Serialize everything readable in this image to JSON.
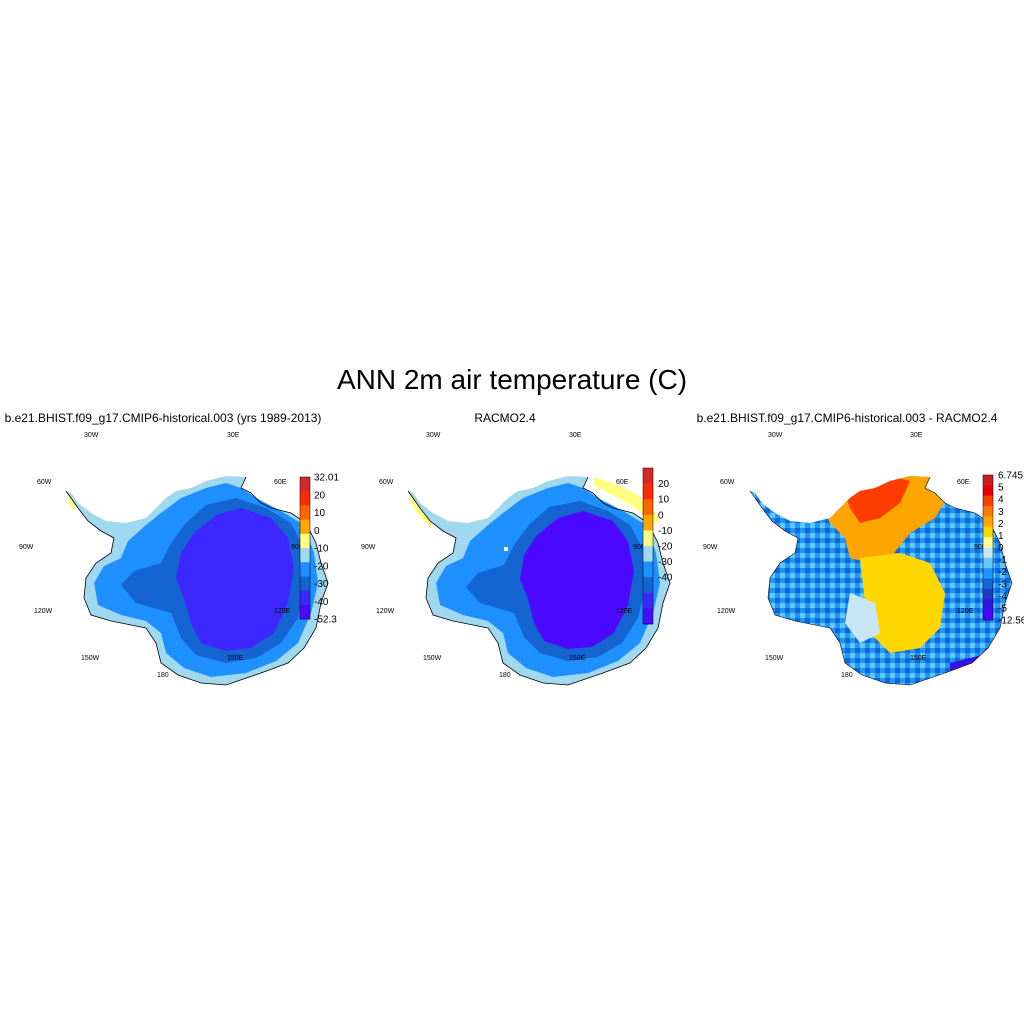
{
  "title": "ANN 2m air temperature (C)",
  "panels": [
    {
      "title": "b.e21.BHIST.f09_g17.CMIP6-historical.003 (yrs 1989-2013)",
      "lon_labels": [
        "30W",
        "30E",
        "60W",
        "60E",
        "90W",
        "90E",
        "120W",
        "120E",
        "150W",
        "150E",
        "180"
      ],
      "colorbar": {
        "labels": [
          "32.01",
          "20",
          "10",
          "0",
          "-10",
          "-20",
          "-30",
          "-40",
          "-52.3"
        ],
        "colors": [
          "#d62728",
          "#ff2a00",
          "#ff6400",
          "#ffa500",
          "#ffff80",
          "#a0d8f0",
          "#1e90ff",
          "#1464d2",
          "#3c28ff",
          "#4b0aff"
        ]
      }
    },
    {
      "title": "RACMO2.4",
      "lon_labels": [
        "30W",
        "30E",
        "60W",
        "60E",
        "90W",
        "90E",
        "120W",
        "120E",
        "150W",
        "150E",
        "180"
      ],
      "colorbar": {
        "labels": [
          "20",
          "10",
          "0",
          "-10",
          "-20",
          "-30",
          "-40"
        ],
        "colors": [
          "#d62728",
          "#ff2a00",
          "#ff6400",
          "#ffa500",
          "#ffff80",
          "#a0d8f0",
          "#1e90ff",
          "#1464d2",
          "#3c28ff",
          "#4b0aff"
        ]
      }
    },
    {
      "title": "b.e21.BHIST.f09_g17.CMIP6-historical.003 - RACMO2.4",
      "lon_labels": [
        "30W",
        "30E",
        "60W",
        "60E",
        "90W",
        "90E",
        "120W",
        "120E",
        "150W",
        "150E",
        "180"
      ],
      "colorbar": {
        "labels": [
          "6.745",
          "5",
          "4",
          "3",
          "2",
          "1",
          "0",
          "-1",
          "-2",
          "-3",
          "-4",
          "-5",
          "-12.56"
        ],
        "colors": [
          "#c81e1e",
          "#e60000",
          "#ff3c00",
          "#ff7800",
          "#ffa500",
          "#ffd700",
          "#ffff96",
          "#c8e6f5",
          "#64c8ff",
          "#1e96ff",
          "#1464d2",
          "#1e3cc8",
          "#3214e6",
          "#4b00ff"
        ]
      }
    }
  ]
}
